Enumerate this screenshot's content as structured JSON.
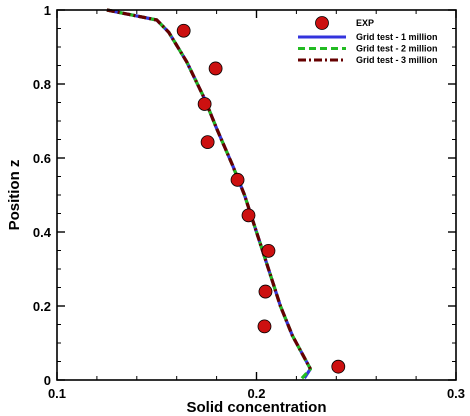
{
  "chart_data": {
    "type": "line",
    "title": "",
    "xlabel": "Solid concentration",
    "ylabel": "Position z",
    "xlim": [
      0.1,
      0.3
    ],
    "ylim": [
      0,
      1
    ],
    "xticks": [
      0.1,
      0.2,
      0.3
    ],
    "xtick_labels": [
      "0.1",
      "0.2",
      "0.3"
    ],
    "yticks": [
      0,
      0.2,
      0.4,
      0.6,
      0.8,
      1
    ],
    "ytick_labels": [
      "0",
      "0.2",
      "0.4",
      "0.6",
      "0.8",
      "1"
    ],
    "grid": false,
    "legend_position": "top-right",
    "experiment": {
      "name": "EXP",
      "color": "#cc1010",
      "points": [
        {
          "x": 0.1635,
          "y": 0.944
        },
        {
          "x": 0.1795,
          "y": 0.842
        },
        {
          "x": 0.174,
          "y": 0.746
        },
        {
          "x": 0.1755,
          "y": 0.643
        },
        {
          "x": 0.1905,
          "y": 0.541
        },
        {
          "x": 0.196,
          "y": 0.445
        },
        {
          "x": 0.206,
          "y": 0.349
        },
        {
          "x": 0.2045,
          "y": 0.239
        },
        {
          "x": 0.204,
          "y": 0.145
        },
        {
          "x": 0.241,
          "y": 0.036
        }
      ]
    },
    "series": [
      {
        "name": "Grid test - 1 million",
        "color": "#3333dd",
        "style": "solid",
        "x": [
          0.125,
          0.15,
          0.156,
          0.165,
          0.174,
          0.18,
          0.188,
          0.194,
          0.2,
          0.206,
          0.212,
          0.218,
          0.224,
          0.227,
          0.224
        ],
        "y": [
          1.0,
          0.973,
          0.94,
          0.86,
          0.76,
          0.68,
          0.58,
          0.5,
          0.4,
          0.3,
          0.2,
          0.12,
          0.06,
          0.03,
          0.005
        ]
      },
      {
        "name": "Grid test - 2 million",
        "color": "#22bb22",
        "style": "dashed",
        "x": [
          0.125,
          0.15,
          0.156,
          0.165,
          0.174,
          0.18,
          0.188,
          0.194,
          0.2,
          0.206,
          0.212,
          0.218,
          0.224,
          0.227,
          0.222
        ],
        "y": [
          1.0,
          0.973,
          0.94,
          0.86,
          0.76,
          0.68,
          0.58,
          0.5,
          0.4,
          0.3,
          0.2,
          0.12,
          0.06,
          0.03,
          0.0
        ]
      },
      {
        "name": "Grid test - 3 million",
        "color": "#660000",
        "style": "dashdot",
        "x": [
          0.125,
          0.15,
          0.156,
          0.165,
          0.174,
          0.18,
          0.188,
          0.194,
          0.2,
          0.206,
          0.212,
          0.218,
          0.224,
          0.227
        ],
        "y": [
          1.0,
          0.973,
          0.94,
          0.86,
          0.76,
          0.68,
          0.58,
          0.5,
          0.4,
          0.3,
          0.2,
          0.12,
          0.06,
          0.03
        ]
      }
    ]
  }
}
